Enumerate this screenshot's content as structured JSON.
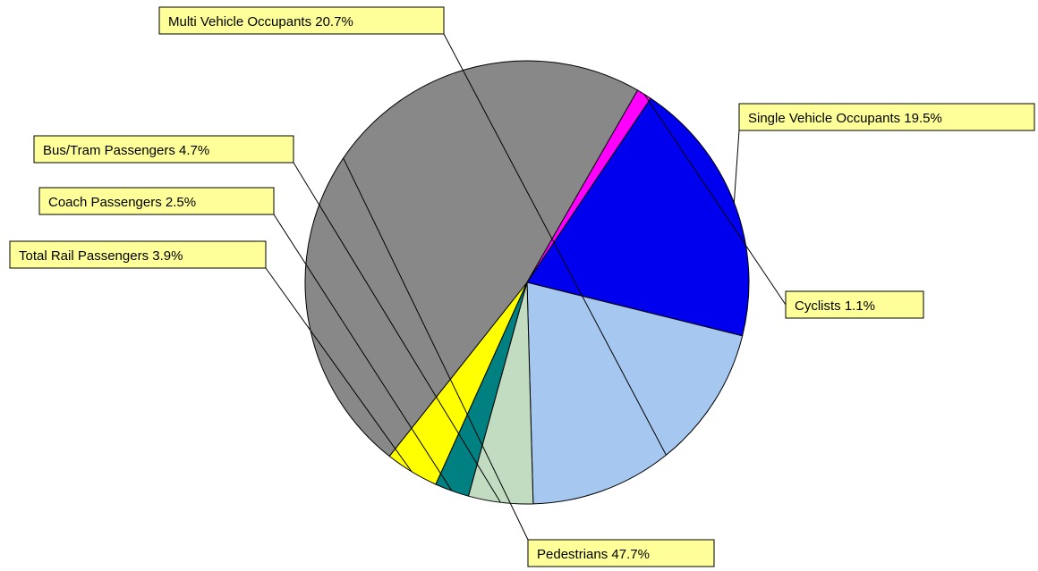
{
  "chart_data": {
    "type": "pie",
    "unit": "%",
    "slices": [
      {
        "label": "Single Vehicle Occupants",
        "value": 19.5,
        "color": "#0000ee"
      },
      {
        "label": "Multi Vehicle Occupants",
        "value": 20.7,
        "color": "#a6c8f0"
      },
      {
        "label": "Bus/Tram Passengers",
        "value": 4.7,
        "color": "#c2dcc2"
      },
      {
        "label": "Coach Passengers",
        "value": 2.5,
        "color": "#008080"
      },
      {
        "label": "Total Rail Passengers",
        "value": 3.9,
        "color": "#ffff00"
      },
      {
        "label": "Pedestrians",
        "value": 47.7,
        "color": "#888888"
      },
      {
        "label": "Cyclists",
        "value": 1.1,
        "color": "#ff00ff"
      }
    ],
    "labels": [
      "Single Vehicle Occupants 19.5%",
      "Multi Vehicle Occupants 20.7%",
      "Bus/Tram Passengers 4.7%",
      "Coach Passengers 2.5%",
      "Total Rail Passengers 3.9%",
      "Pedestrians 47.7%",
      "Cyclists 1.1%"
    ]
  }
}
